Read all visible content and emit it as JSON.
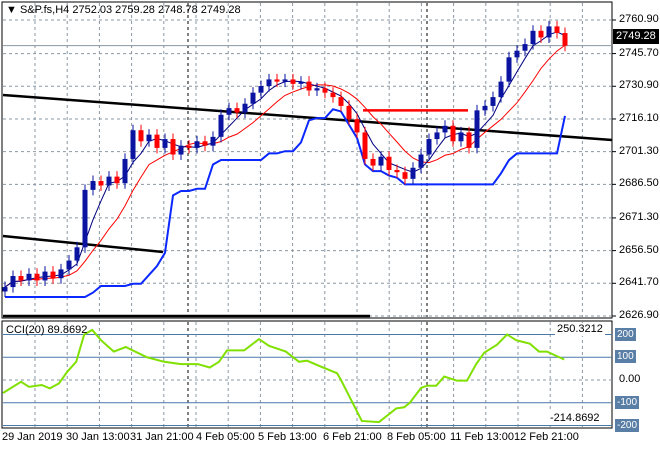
{
  "header": {
    "symbol": "S&P.fs,H4",
    "ohlc": "2752.03 2759.28 2748.78 2749.28"
  },
  "current_price": "2749.28",
  "cci": {
    "title": "CCI(20) 89.8692",
    "max_label": "250.3212",
    "min_label": "-214.8692",
    "levels": [
      "200",
      "100",
      "0.00",
      "-100",
      "-200"
    ]
  },
  "colors": {
    "bull": "#0a14a0",
    "bear": "#ff0000",
    "ma_fast": "#000080",
    "ma_slow": "#ff0000",
    "stop": "#0a28ff",
    "cci": "#80e000",
    "grid": "#8a97a3"
  },
  "chart_data": {
    "type": "candlestick",
    "price_axis": {
      "labels": [
        "2760.90",
        "2745.70",
        "2730.90",
        "2716.10",
        "2701.30",
        "2686.50",
        "2671.30",
        "2656.50",
        "2641.70",
        "2626.90"
      ],
      "ylim": [
        2626.9,
        2760.9
      ]
    },
    "time_labels": [
      "29 Jan 2019",
      "30 Jan 13:00",
      "31 Jan 21:00",
      "4 Feb 05:00",
      "5 Feb 13:00",
      "6 Feb 21:00",
      "8 Feb 05:00",
      "11 Feb 13:00",
      "12 Feb 21:00"
    ],
    "closes": [
      2640,
      2645,
      2643,
      2646,
      2643,
      2647,
      2644,
      2648,
      2652,
      2658,
      2684,
      2688,
      2686,
      2690,
      2687,
      2698,
      2711,
      2706,
      2709,
      2703,
      2707,
      2700,
      2704,
      2703,
      2706,
      2704,
      2708,
      2718,
      2721,
      2719,
      2723,
      2728,
      2731,
      2734,
      2733,
      2734,
      2732,
      2733,
      2729,
      2730,
      2728,
      2726,
      2722,
      2716,
      2710,
      2698,
      2695,
      2699,
      2693,
      2692,
      2689,
      2694,
      2700,
      2707,
      2710,
      2713,
      2706,
      2710,
      2703,
      2720,
      2722,
      2726,
      2733,
      2744,
      2747,
      2750,
      2756,
      2753,
      2758,
      2755,
      2749.28
    ],
    "resistance_level": 2720,
    "cci_series": [
      [
        -0.25,
        -57
      ],
      [
        2,
        -8
      ],
      [
        3,
        -30
      ],
      [
        4.6,
        -22
      ],
      [
        5.6,
        -37
      ],
      [
        6.75,
        -15
      ],
      [
        7.75,
        35
      ],
      [
        8.9,
        80
      ],
      [
        9.9,
        200
      ],
      [
        10.9,
        220
      ],
      [
        12,
        175
      ],
      [
        13.6,
        125
      ],
      [
        15.1,
        145
      ],
      [
        17.75,
        100
      ],
      [
        19.9,
        80
      ],
      [
        22,
        70
      ],
      [
        24.1,
        70
      ],
      [
        25.6,
        55
      ],
      [
        26.75,
        80
      ],
      [
        27.75,
        130
      ],
      [
        29.9,
        130
      ],
      [
        31.75,
        180
      ],
      [
        33,
        150
      ],
      [
        35.1,
        125
      ],
      [
        36.75,
        80
      ],
      [
        37.75,
        85
      ],
      [
        39.4,
        60
      ],
      [
        41.5,
        30
      ],
      [
        42,
        0
      ],
      [
        44.6,
        -180
      ],
      [
        46.75,
        -185
      ],
      [
        48.9,
        -125
      ],
      [
        49.9,
        -120
      ],
      [
        50.6,
        -100
      ],
      [
        52,
        -35
      ],
      [
        52.75,
        -25
      ],
      [
        53.9,
        -25
      ],
      [
        54.9,
        15
      ],
      [
        56.5,
        -3
      ],
      [
        57.75,
        -3
      ],
      [
        58.9,
        70
      ],
      [
        59.9,
        120
      ],
      [
        61.5,
        155
      ],
      [
        62.75,
        200
      ],
      [
        63.9,
        175
      ],
      [
        65.6,
        160
      ],
      [
        66.75,
        125
      ],
      [
        67.75,
        125
      ],
      [
        69.9,
        90
      ]
    ],
    "cci_ylim": [
      -214.8692,
      250.3212
    ]
  }
}
